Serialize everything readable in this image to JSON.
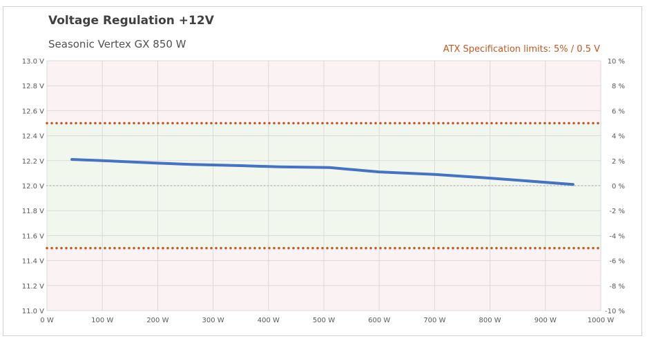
{
  "chart_data": {
    "type": "line",
    "title": "Voltage Regulation +12V",
    "subtitle": "Seasonic Vertex GX 850 W",
    "annotation": "ATX Specification limits: 5% / 0.5 V",
    "x_unit": "W",
    "xlim": [
      0,
      1000
    ],
    "x_ticks": [
      "0 W",
      "100 W",
      "200 W",
      "300 W",
      "400 W",
      "500 W",
      "600 W",
      "700 W",
      "800 W",
      "900 W",
      "1000 W"
    ],
    "ylim": [
      11.0,
      13.0
    ],
    "y_ticks": [
      "11.0 V",
      "11.2 V",
      "11.4 V",
      "11.6 V",
      "11.8 V",
      "12.0 V",
      "12.2 V",
      "12.4 V",
      "12.6 V",
      "12.8 V",
      "13.0 V"
    ],
    "y2lim": [
      -10,
      10
    ],
    "y2_ticks": [
      "-10 %",
      "-8 %",
      "-6 %",
      "-4 %",
      "-2 %",
      "0 %",
      "2 %",
      "4 %",
      "6 %",
      "8 %",
      "10 %"
    ],
    "grid": true,
    "reference_lines": [
      {
        "y": 12.5,
        "style": "dotted",
        "color": "#c5561e"
      },
      {
        "y": 11.5,
        "style": "dotted",
        "color": "#c5561e"
      },
      {
        "y": 12.0,
        "style": "dotted",
        "color": "#bfbfbf"
      }
    ],
    "series": [
      {
        "color": "#4472c4",
        "x": [
          45,
          100,
          200,
          260,
          350,
          420,
          510,
          600,
          700,
          800,
          950
        ],
        "y": [
          12.21,
          12.2,
          12.18,
          12.17,
          12.16,
          12.15,
          12.145,
          12.11,
          12.09,
          12.06,
          12.01
        ]
      }
    ],
    "colors": {
      "in_spec_band": "#f2f7ee",
      "out_spec_band": "#fbf3f3",
      "gridline": "#d9d9d9",
      "line": "#4472c4",
      "limit": "#c5561e",
      "title": "#404040"
    }
  }
}
